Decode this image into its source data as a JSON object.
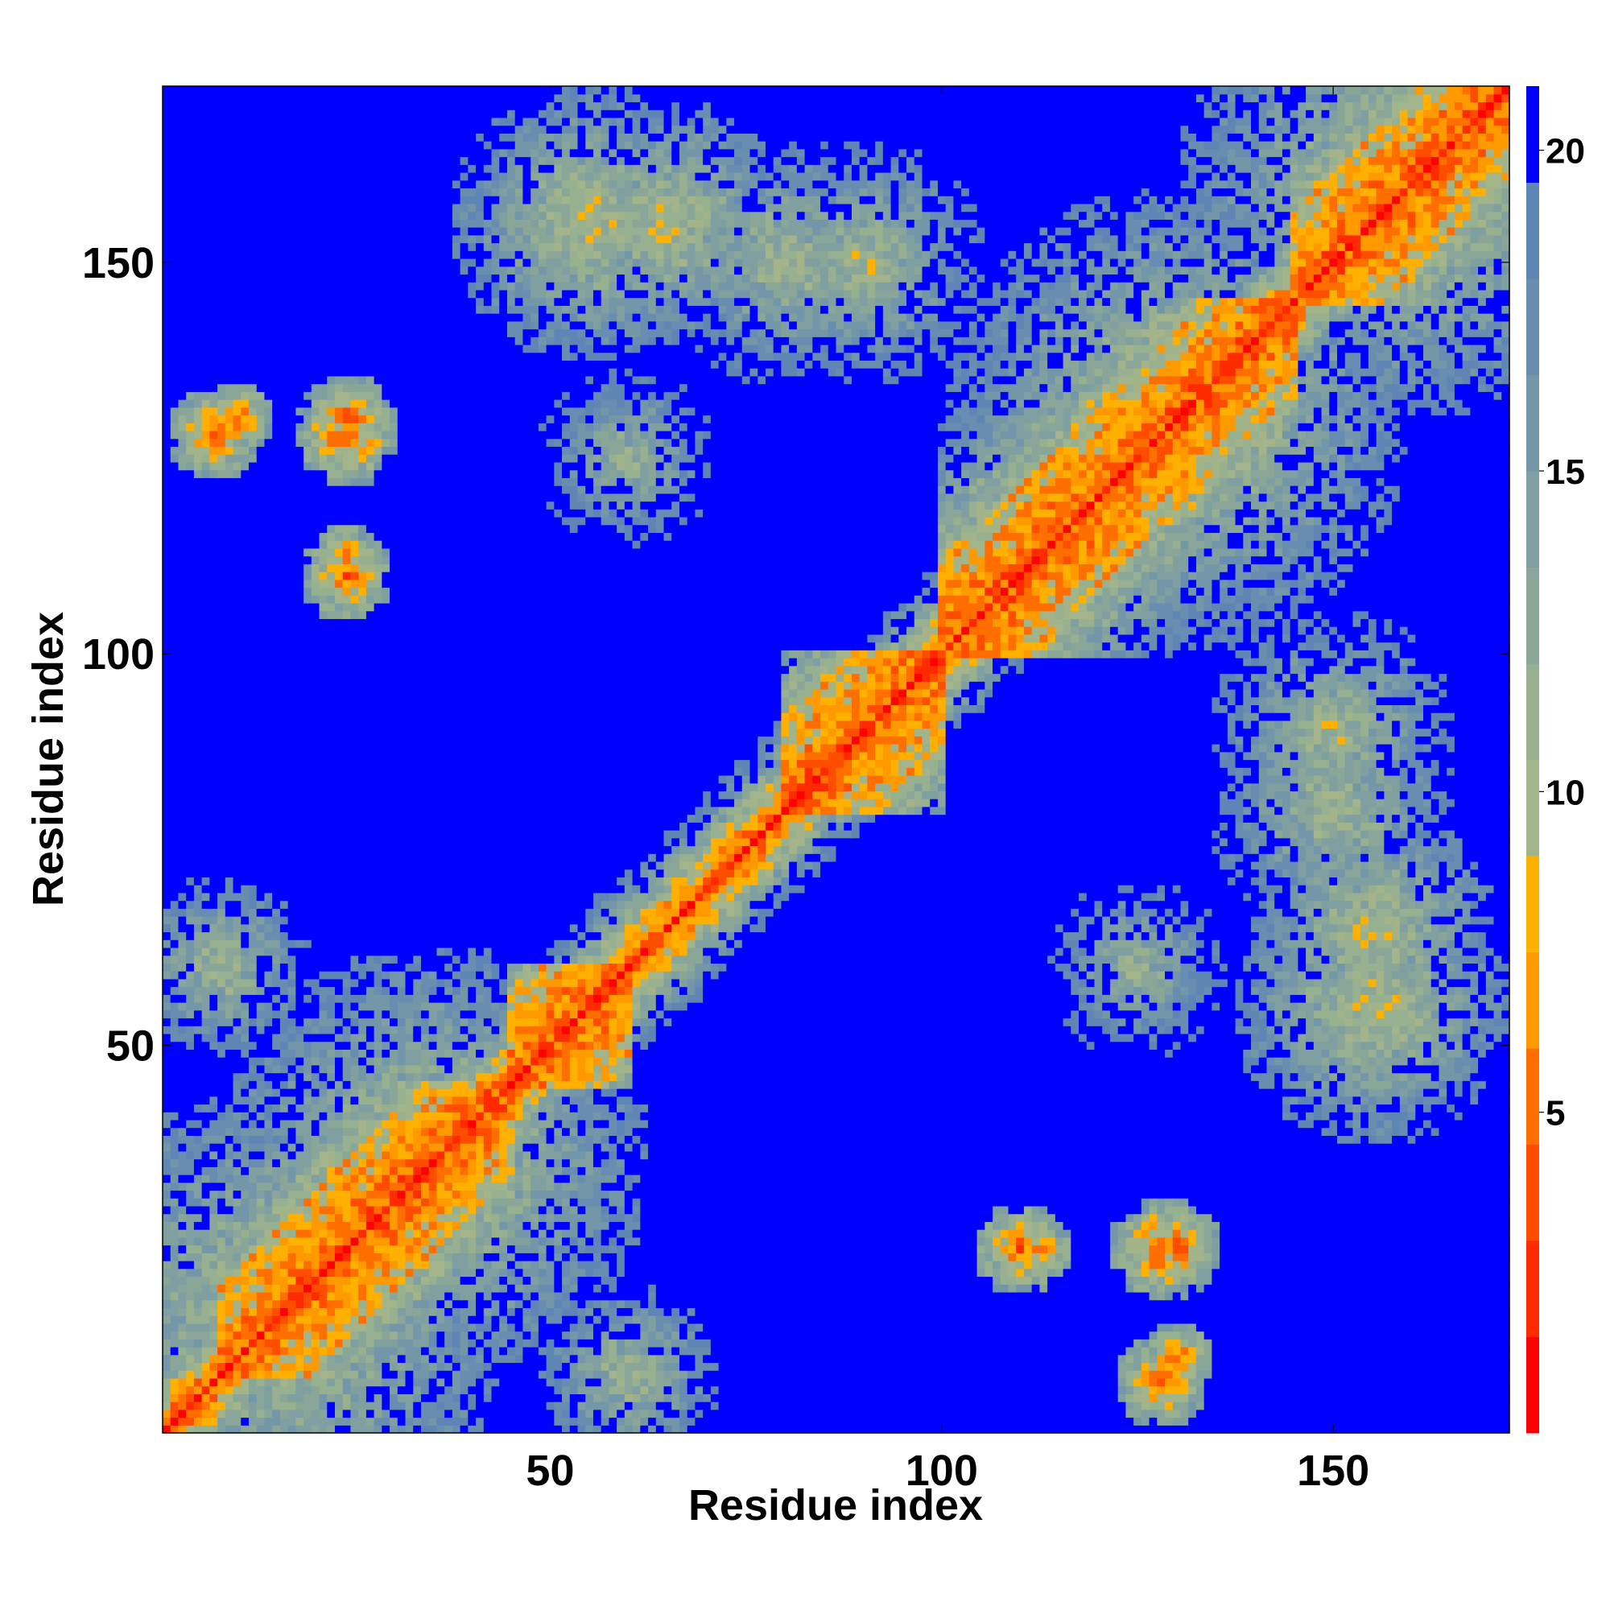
{
  "chart_data": {
    "type": "heatmap",
    "title": "",
    "xlabel": "Residue index",
    "ylabel": "Residue index",
    "n_residues": 172,
    "xlim": [
      1,
      172
    ],
    "ylim": [
      1,
      172
    ],
    "x_ticks": [
      50,
      100,
      150
    ],
    "y_ticks": [
      50,
      100,
      150
    ],
    "colorbar": {
      "ticks": [
        5,
        10,
        15,
        20
      ],
      "range": [
        0,
        21
      ],
      "levels": [
        {
          "to": 1.5,
          "color": "#ff0000"
        },
        {
          "to": 3.0,
          "color": "#ff2a00"
        },
        {
          "to": 4.5,
          "color": "#ff4d00"
        },
        {
          "to": 6.0,
          "color": "#ff6f00"
        },
        {
          "to": 7.5,
          "color": "#ff9900"
        },
        {
          "to": 9.0,
          "color": "#ffb000"
        },
        {
          "to": 10.5,
          "color": "#a3b38a"
        },
        {
          "to": 12.0,
          "color": "#97b090"
        },
        {
          "to": 13.5,
          "color": "#8aa698"
        },
        {
          "to": 15.0,
          "color": "#809fa0"
        },
        {
          "to": 16.5,
          "color": "#7396a8"
        },
        {
          "to": 18.0,
          "color": "#698db0"
        },
        {
          "to": 19.5,
          "color": "#5f85b5"
        },
        {
          "to": 21.0,
          "color": "#0000ff"
        }
      ]
    },
    "matrix_description": "Symmetric residue-residue distance map (Angstrom); values above 20 shown in blue.",
    "diagonal_band": {
      "near": 0.8,
      "step_per_offset": 1.05
    },
    "helix_segments": [
      [
        8,
        45
      ],
      [
        45,
        60
      ],
      [
        80,
        100
      ],
      [
        100,
        145
      ],
      [
        145,
        172
      ]
    ],
    "contact_blobs": [
      {
        "i": 10,
        "j": 130,
        "dist": 4.5,
        "radius": 5
      },
      {
        "i": 24,
        "j": 130,
        "dist": 4.5,
        "radius": 6
      },
      {
        "i": 24,
        "j": 112,
        "dist": 5.0,
        "radius": 5
      },
      {
        "i": 110,
        "j": 24,
        "dist": 4.5,
        "radius": 6
      },
      {
        "i": 128,
        "j": 24,
        "dist": 4.5,
        "radius": 7
      },
      {
        "i": 128,
        "j": 7,
        "dist": 4.5,
        "radius": 6
      },
      {
        "i": 15,
        "j": 15,
        "dist": 9,
        "radius": 30
      },
      {
        "i": 35,
        "j": 35,
        "dist": 9,
        "radius": 28
      },
      {
        "i": 130,
        "j": 130,
        "dist": 9,
        "radius": 30
      },
      {
        "i": 160,
        "j": 160,
        "dist": 9,
        "radius": 30
      },
      {
        "i": 55,
        "j": 155,
        "dist": 9,
        "radius": 18
      },
      {
        "i": 80,
        "j": 150,
        "dist": 10,
        "radius": 16
      },
      {
        "i": 155,
        "j": 65,
        "dist": 9,
        "radius": 16
      },
      {
        "i": 150,
        "j": 90,
        "dist": 10,
        "radius": 16
      },
      {
        "i": 125,
        "j": 60,
        "dist": 11,
        "radius": 12
      },
      {
        "i": 60,
        "j": 125,
        "dist": 11,
        "radius": 12
      },
      {
        "i": 8,
        "j": 60,
        "dist": 10,
        "radius": 12
      },
      {
        "i": 60,
        "j": 8,
        "dist": 10,
        "radius": 12
      }
    ]
  }
}
